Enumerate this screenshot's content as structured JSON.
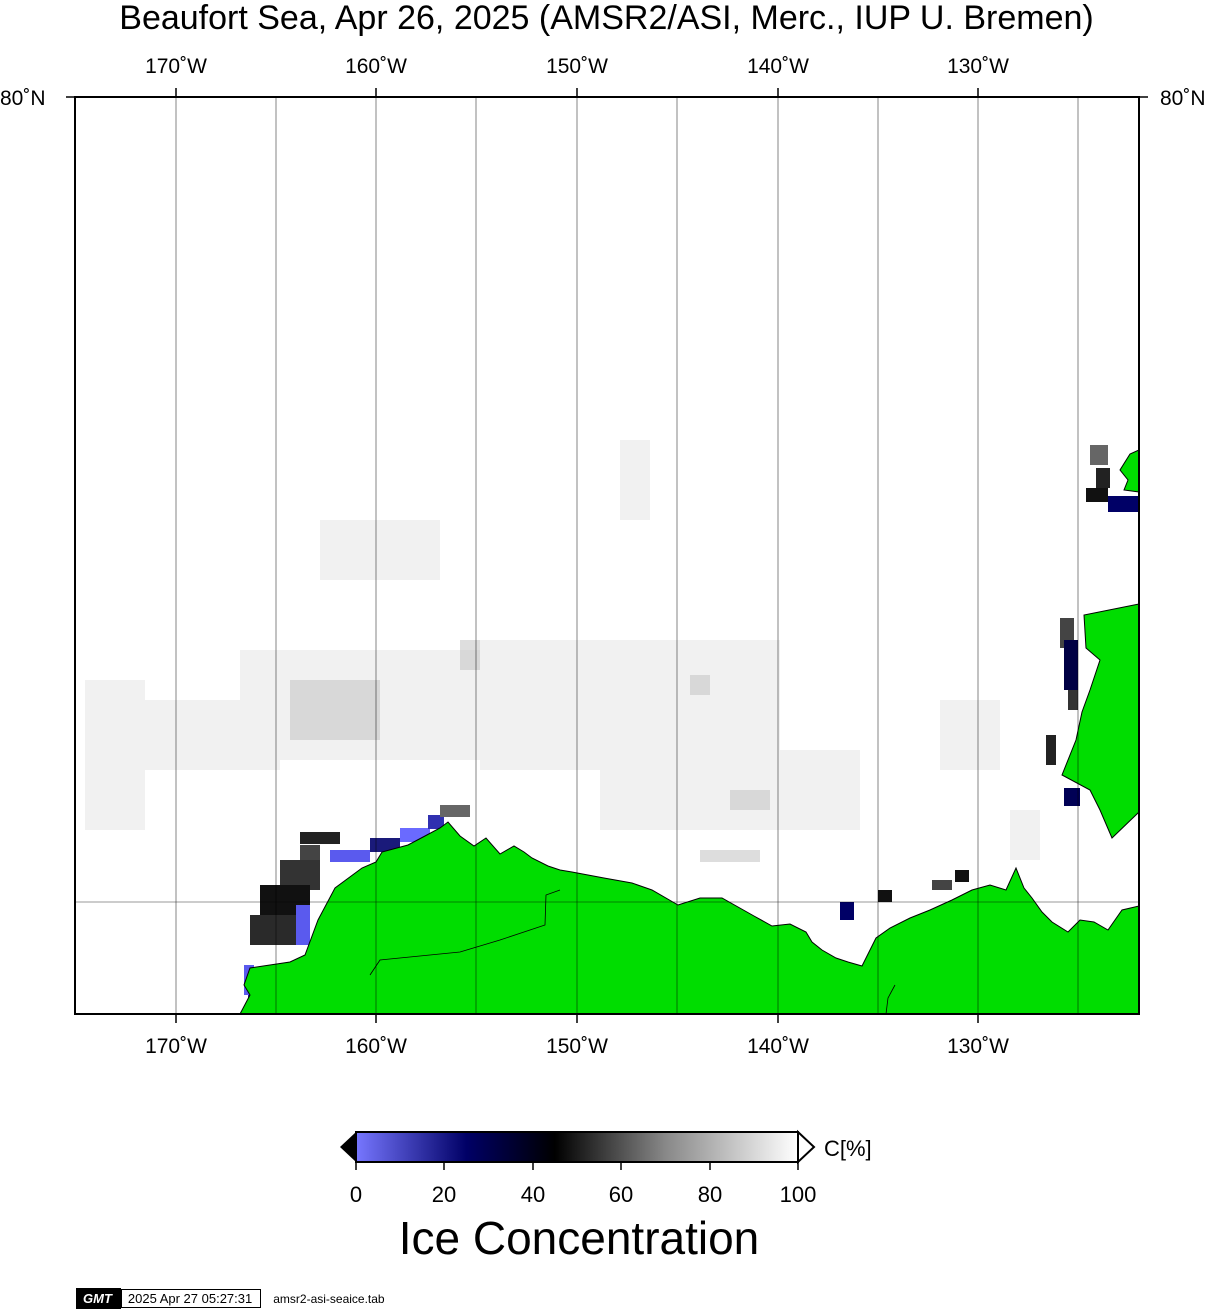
{
  "title": "Beaufort Sea, Apr 26, 2025 (AMSR2/ASI, Merc., IUP U. Bremen)",
  "map": {
    "longitude_labels": [
      "170˚W",
      "160˚W",
      "150˚W",
      "140˚W",
      "130˚W"
    ],
    "latitude_label": "80˚N",
    "land_color": "#00dd00",
    "frame_color": "#000000"
  },
  "colorbar": {
    "ticks": [
      "0",
      "20",
      "40",
      "60",
      "80",
      "100"
    ],
    "unit": "C[%]",
    "title": "Ice Concentration",
    "stops": [
      "#7777ff",
      "#000066",
      "#000000",
      "#888888",
      "#ffffff"
    ]
  },
  "footer": {
    "logo": "GMT",
    "timestamp": "2025 Apr 27 05:27:31",
    "source_file": "amsr2-asi-seaice.tab"
  }
}
